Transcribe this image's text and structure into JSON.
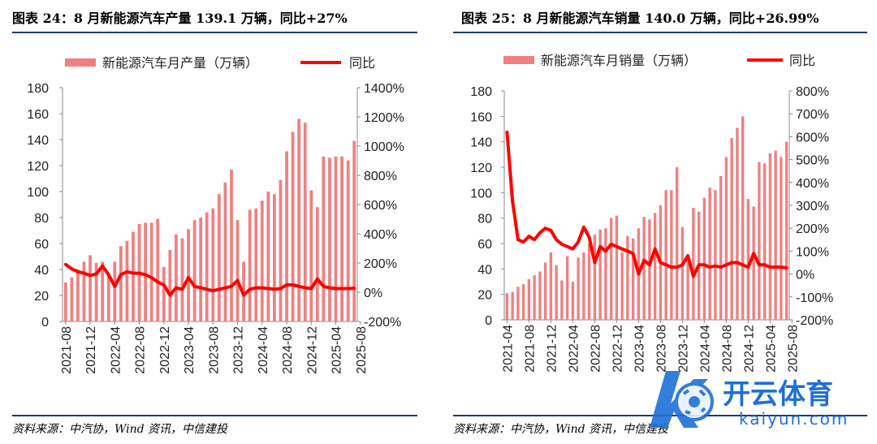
{
  "charts": [
    {
      "title": "图表 24：8 月新能源汽车产量 139.1 万辆，同比+27%",
      "source": "资料来源：中汽协，Wind 资讯，中信建投"
    },
    {
      "title": "图表 25：8 月新能源汽车销量 140.0 万辆，同比+26.99%",
      "source": "资料来源：中汽协，Wind 资讯，中信建投"
    }
  ],
  "watermark": {
    "brand": "开云体育",
    "domain": "kaiyun.com"
  },
  "colors": {
    "bar": "#f08080",
    "line": "#ff0000",
    "rule": "#1f3b73"
  },
  "chart_data": [
    {
      "type": "bar",
      "title": "图表 24：8 月新能源汽车产量 139.1 万辆，同比+27%",
      "x_tick_labels": [
        "2021-08",
        "2021-12",
        "2022-04",
        "2022-08",
        "2022-12",
        "2023-04",
        "2023-08",
        "2023-12",
        "2024-04",
        "2024-08",
        "2024-12",
        "2025-04",
        "2025-08"
      ],
      "x_tick_start_month": "2021-08",
      "y_left": {
        "label": "万辆",
        "ylim": [
          0,
          180
        ],
        "ticks": [
          "0",
          "20",
          "40",
          "60",
          "80",
          "100",
          "120",
          "140",
          "160",
          "180"
        ]
      },
      "y_right": {
        "label": "同比",
        "ylim": [
          -200,
          1400
        ],
        "ticks": [
          "-200%",
          "0%",
          "200%",
          "400%",
          "600%",
          "800%",
          "1000%",
          "1200%",
          "1400%"
        ]
      },
      "legend": [
        "新能源汽车月产量（万辆）",
        "同比"
      ],
      "legend_position": "top",
      "series": [
        {
          "name": "新能源汽车月产量（万辆）",
          "kind": "bar",
          "axis": "left",
          "start": "2021-08",
          "values": [
            30,
            34,
            40,
            46,
            51,
            45,
            46,
            36,
            46,
            58,
            62,
            69,
            75,
            76,
            76,
            79,
            42,
            55,
            67,
            64,
            71,
            78,
            80,
            84,
            87,
            98,
            107,
            117,
            78,
            46,
            86,
            87,
            93,
            100,
            98,
            109,
            131,
            146,
            156,
            153,
            101,
            88,
            127,
            126,
            127,
            127,
            124,
            139
          ]
        },
        {
          "name": "同比",
          "kind": "line",
          "axis": "right",
          "start": "2021-08",
          "values": [
            190,
            160,
            140,
            130,
            115,
            125,
            180,
            120,
            40,
            120,
            140,
            130,
            130,
            120,
            100,
            70,
            50,
            -20,
            30,
            20,
            100,
            40,
            30,
            20,
            10,
            20,
            30,
            40,
            80,
            -20,
            20,
            30,
            30,
            25,
            20,
            25,
            50,
            50,
            40,
            30,
            25,
            90,
            40,
            30,
            25,
            25,
            25,
            27
          ]
        }
      ]
    },
    {
      "type": "bar",
      "title": "图表 25：8 月新能源汽车销量 140.0 万辆，同比+26.99%",
      "x_tick_labels": [
        "2021-04",
        "2021-08",
        "2021-12",
        "2022-04",
        "2022-08",
        "2022-12",
        "2023-04",
        "2023-08",
        "2023-12",
        "2024-04",
        "2024-08",
        "2024-12",
        "2025-04",
        "2025-08"
      ],
      "x_tick_start_month": "2021-04",
      "y_left": {
        "label": "万辆",
        "ylim": [
          0,
          180
        ],
        "ticks": [
          "0",
          "20",
          "40",
          "60",
          "80",
          "100",
          "120",
          "140",
          "160",
          "180"
        ]
      },
      "y_right": {
        "label": "同比",
        "ylim": [
          -200,
          800
        ],
        "ticks": [
          "-200%",
          "-100%",
          "0%",
          "100%",
          "200%",
          "300%",
          "400%",
          "500%",
          "600%",
          "700%",
          "800%"
        ]
      },
      "legend": [
        "新能源汽车月销量（万辆）",
        "同比"
      ],
      "legend_position": "top",
      "series": [
        {
          "name": "新能源汽车月销量（万辆）",
          "kind": "bar",
          "axis": "left",
          "start": "2021-04",
          "values": [
            21,
            22,
            26,
            28,
            32,
            35,
            38,
            45,
            53,
            43,
            31,
            50,
            30,
            49,
            53,
            60,
            67,
            71,
            72,
            80,
            82,
            53,
            66,
            64,
            72,
            81,
            79,
            84,
            90,
            102,
            102,
            120,
            73,
            47,
            88,
            85,
            96,
            104,
            102,
            113,
            128,
            143,
            151,
            160,
            95,
            89,
            124,
            123,
            131,
            133,
            128,
            140
          ]
        },
        {
          "name": "同比",
          "kind": "line",
          "axis": "right",
          "start": "2021-04",
          "values": [
            620,
            320,
            150,
            140,
            165,
            150,
            180,
            200,
            190,
            150,
            130,
            120,
            110,
            140,
            205,
            160,
            50,
            120,
            100,
            130,
            120,
            110,
            100,
            90,
            0,
            60,
            40,
            110,
            50,
            40,
            30,
            30,
            40,
            80,
            -10,
            40,
            40,
            30,
            35,
            30,
            40,
            50,
            50,
            40,
            30,
            90,
            40,
            40,
            30,
            30,
            30,
            27
          ]
        }
      ]
    }
  ]
}
